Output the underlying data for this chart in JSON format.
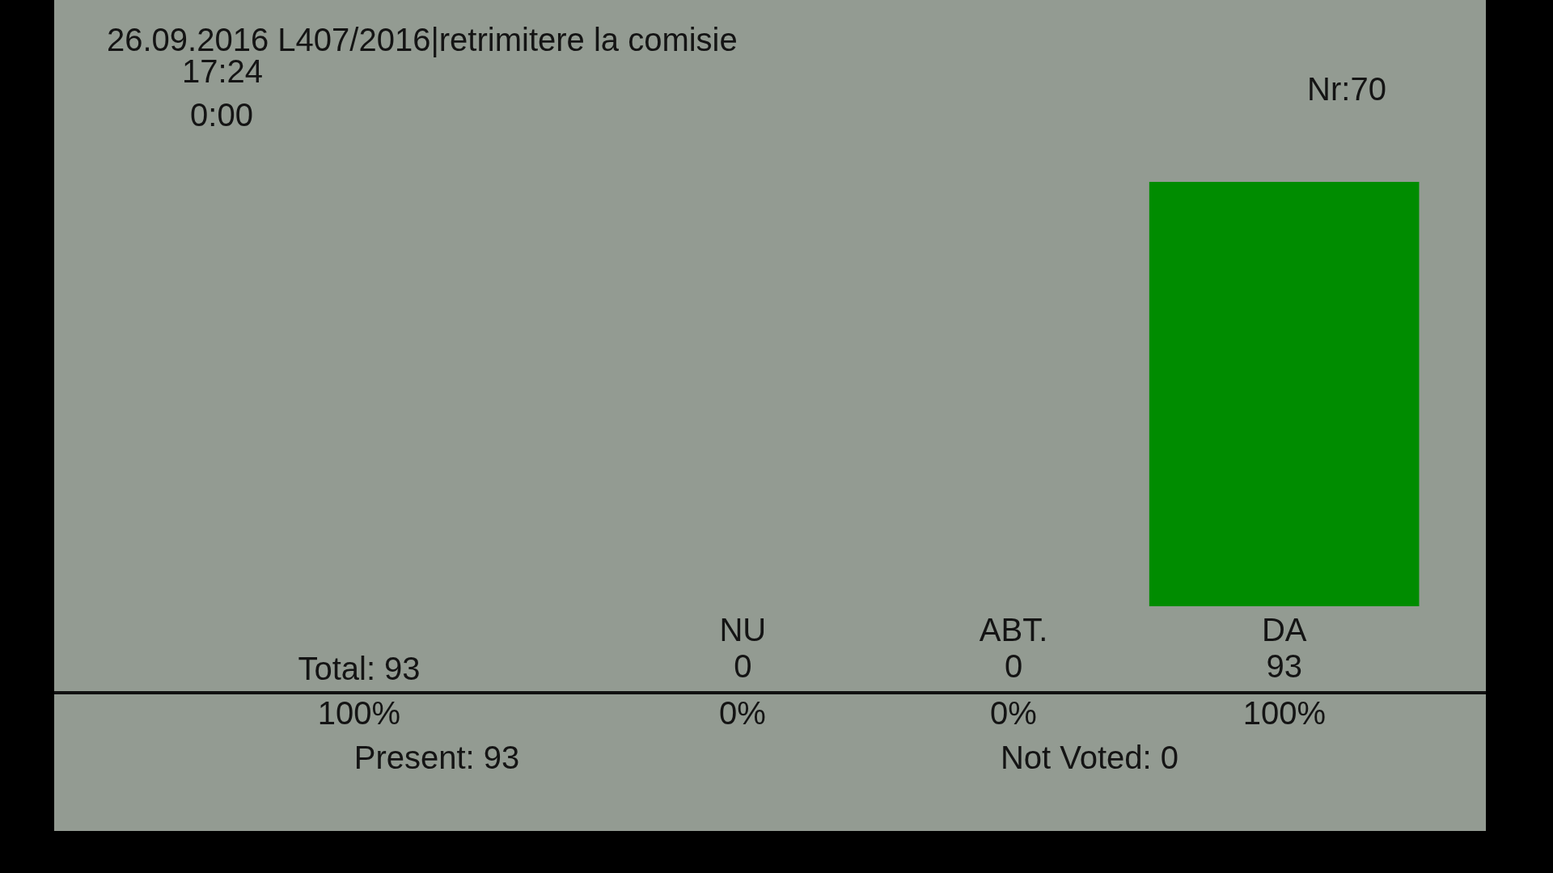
{
  "chart_data": {
    "type": "bar",
    "title": "26.09.2016 L407/2016|retrimitere la comisie",
    "subtitle": "17:24",
    "categories": [
      "NU",
      "ABT.",
      "DA"
    ],
    "values": [
      0,
      0,
      93
    ],
    "colors": [
      "#008c00",
      "#008c00",
      "#008c00"
    ],
    "ylim": [
      0,
      93
    ],
    "tick_labels": "x",
    "grid": false,
    "legend": false,
    "data_labels": true,
    "annotations": [
      "0:00",
      "Nr:70",
      "Total: 93",
      "100%",
      "0%",
      "0%",
      "100%",
      "Present: 93",
      "Not Voted: 0"
    ]
  }
}
